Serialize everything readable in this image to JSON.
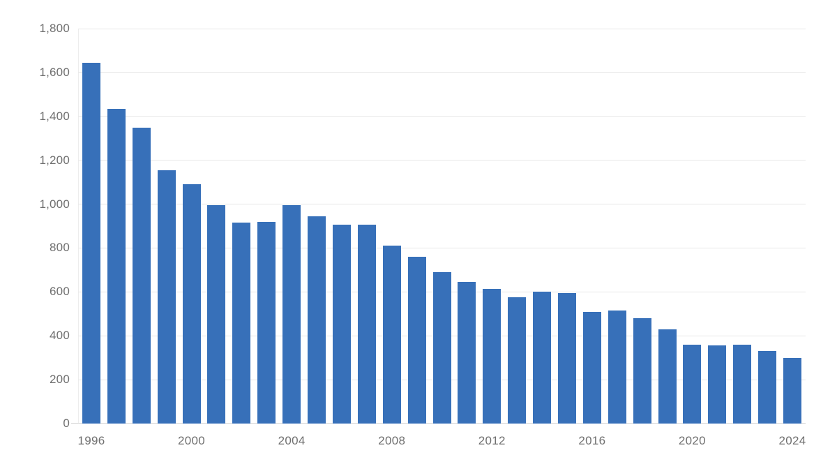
{
  "chart_data": {
    "type": "bar",
    "title": "",
    "xlabel": "",
    "ylabel": "",
    "categories": [
      "1996",
      "1997",
      "1998",
      "1999",
      "2000",
      "2001",
      "2002",
      "2003",
      "2004",
      "2005",
      "2006",
      "2007",
      "2008",
      "2009",
      "2010",
      "2011",
      "2012",
      "2013",
      "2014",
      "2015",
      "2016",
      "2017",
      "2018",
      "2019",
      "2020",
      "2021",
      "2022",
      "2023",
      "2024"
    ],
    "values": [
      1645,
      1435,
      1350,
      1155,
      1090,
      995,
      915,
      920,
      995,
      945,
      905,
      905,
      810,
      760,
      690,
      645,
      615,
      575,
      600,
      595,
      510,
      515,
      480,
      430,
      360,
      355,
      360,
      330,
      300
    ],
    "ylim": [
      0,
      1800
    ],
    "ytick_interval": 200,
    "ytick_labels": [
      "0",
      "200",
      "400",
      "600",
      "800",
      "1,000",
      "1,200",
      "1,400",
      "1,600",
      "1,800"
    ],
    "xtick_labels": [
      "1996",
      "2000",
      "2004",
      "2008",
      "2012",
      "2016",
      "2020",
      "2024"
    ],
    "grid": true,
    "legend": "none",
    "bar_color": "#3770b9",
    "gridline_color": "#e7e7e7",
    "baseline_color": "#d2d2d2",
    "label_color": "#6f6f6f",
    "background_color": "#ffffff"
  }
}
